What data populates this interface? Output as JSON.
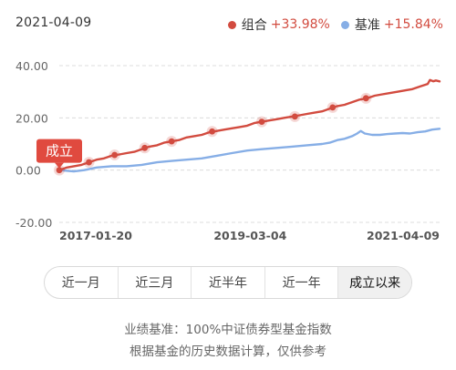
{
  "header": {
    "date": "2021-04-09"
  },
  "legend": [
    {
      "name": "组合",
      "value": "+33.98%",
      "color": "#d24b3f"
    },
    {
      "name": "基准",
      "value": "+15.84%",
      "color": "#86aee6"
    }
  ],
  "chart_data": {
    "type": "line",
    "y_ticks": [
      "40.00",
      "20.00",
      "0.00",
      "-20.00"
    ],
    "x_tick_labels": [
      "2017-01-20",
      "2019-03-04",
      "2021-04-09"
    ],
    "x_range": [
      "2017-01-20",
      "2021-04-09"
    ],
    "ylim": [
      -20,
      40
    ],
    "grid": "horizontal-dashed",
    "inception_label": "成立",
    "series": [
      {
        "name": "组合",
        "color": "#d24b3f",
        "points": [
          [
            "2017-01-20",
            0.0
          ],
          [
            "2017-02-20",
            1.0
          ],
          [
            "2017-03-20",
            1.5
          ],
          [
            "2017-04-20",
            2.0
          ],
          [
            "2017-05-20",
            3.0
          ],
          [
            "2017-06-20",
            4.0
          ],
          [
            "2017-07-20",
            4.5
          ],
          [
            "2017-08-20",
            5.5
          ],
          [
            "2017-09-20",
            6.0
          ],
          [
            "2017-10-20",
            6.5
          ],
          [
            "2017-11-20",
            7.0
          ],
          [
            "2017-12-20",
            8.0
          ],
          [
            "2018-01-20",
            9.0
          ],
          [
            "2018-02-20",
            9.5
          ],
          [
            "2018-03-20",
            10.5
          ],
          [
            "2018-04-20",
            11.0
          ],
          [
            "2018-05-20",
            11.5
          ],
          [
            "2018-06-20",
            12.5
          ],
          [
            "2018-07-20",
            13.0
          ],
          [
            "2018-08-20",
            13.5
          ],
          [
            "2018-09-20",
            14.5
          ],
          [
            "2018-10-20",
            15.0
          ],
          [
            "2018-11-20",
            15.5
          ],
          [
            "2018-12-20",
            16.0
          ],
          [
            "2019-01-20",
            16.5
          ],
          [
            "2019-02-20",
            17.0
          ],
          [
            "2019-03-20",
            18.0
          ],
          [
            "2019-04-20",
            18.5
          ],
          [
            "2019-05-20",
            19.0
          ],
          [
            "2019-06-20",
            19.5
          ],
          [
            "2019-07-20",
            20.0
          ],
          [
            "2019-08-20",
            20.5
          ],
          [
            "2019-09-20",
            21.0
          ],
          [
            "2019-10-20",
            21.5
          ],
          [
            "2019-11-20",
            22.0
          ],
          [
            "2019-12-20",
            22.5
          ],
          [
            "2020-01-20",
            23.5
          ],
          [
            "2020-02-20",
            24.5
          ],
          [
            "2020-03-20",
            25.0
          ],
          [
            "2020-04-20",
            26.0
          ],
          [
            "2020-05-20",
            27.0
          ],
          [
            "2020-06-20",
            27.5
          ],
          [
            "2020-07-20",
            28.5
          ],
          [
            "2020-08-20",
            29.0
          ],
          [
            "2020-09-20",
            29.5
          ],
          [
            "2020-10-20",
            30.0
          ],
          [
            "2020-11-20",
            30.5
          ],
          [
            "2020-12-20",
            31.0
          ],
          [
            "2021-01-20",
            32.0
          ],
          [
            "2021-02-20",
            33.0
          ],
          [
            "2021-03-01",
            34.5
          ],
          [
            "2021-03-15",
            34.0
          ],
          [
            "2021-03-25",
            34.3
          ],
          [
            "2021-04-09",
            33.98
          ]
        ],
        "markers": [
          [
            "2017-01-20",
            0.0
          ],
          [
            "2017-05-20",
            3.0
          ],
          [
            "2017-09-01",
            5.8
          ],
          [
            "2018-01-01",
            8.5
          ],
          [
            "2018-04-20",
            11.0
          ],
          [
            "2018-10-01",
            14.8
          ],
          [
            "2019-04-20",
            18.5
          ],
          [
            "2019-09-01",
            20.5
          ],
          [
            "2020-02-01",
            24.0
          ],
          [
            "2020-06-15",
            27.5
          ]
        ]
      },
      {
        "name": "基准",
        "color": "#86aee6",
        "points": [
          [
            "2017-01-20",
            0.0
          ],
          [
            "2017-03-20",
            -0.5
          ],
          [
            "2017-05-01",
            0.0
          ],
          [
            "2017-06-20",
            1.0
          ],
          [
            "2017-08-20",
            1.5
          ],
          [
            "2017-10-20",
            1.5
          ],
          [
            "2017-12-20",
            2.0
          ],
          [
            "2018-02-20",
            3.0
          ],
          [
            "2018-04-20",
            3.5
          ],
          [
            "2018-06-20",
            4.0
          ],
          [
            "2018-08-20",
            4.5
          ],
          [
            "2018-10-20",
            5.5
          ],
          [
            "2018-12-20",
            6.5
          ],
          [
            "2019-02-20",
            7.5
          ],
          [
            "2019-04-20",
            8.0
          ],
          [
            "2019-06-20",
            8.5
          ],
          [
            "2019-08-20",
            9.0
          ],
          [
            "2019-10-20",
            9.5
          ],
          [
            "2019-12-20",
            10.0
          ],
          [
            "2020-01-20",
            10.5
          ],
          [
            "2020-02-20",
            11.5
          ],
          [
            "2020-03-20",
            12.0
          ],
          [
            "2020-04-20",
            13.0
          ],
          [
            "2020-05-10",
            14.0
          ],
          [
            "2020-05-25",
            15.0
          ],
          [
            "2020-06-10",
            14.0
          ],
          [
            "2020-07-10",
            13.5
          ],
          [
            "2020-08-10",
            13.5
          ],
          [
            "2020-09-10",
            13.8
          ],
          [
            "2020-10-10",
            14.0
          ],
          [
            "2020-11-10",
            14.2
          ],
          [
            "2020-12-10",
            14.0
          ],
          [
            "2021-01-10",
            14.5
          ],
          [
            "2021-02-10",
            14.8
          ],
          [
            "2021-03-10",
            15.5
          ],
          [
            "2021-04-09",
            15.84
          ]
        ]
      }
    ]
  },
  "tabs": [
    {
      "label": "近一月",
      "active": false
    },
    {
      "label": "近三月",
      "active": false
    },
    {
      "label": "近半年",
      "active": false
    },
    {
      "label": "近一年",
      "active": false
    },
    {
      "label": "成立以来",
      "active": true
    }
  ],
  "footnotes": [
    "业绩基准：100%中证债券型基金指数",
    "根据基金的历史数据计算，仅供参考"
  ]
}
